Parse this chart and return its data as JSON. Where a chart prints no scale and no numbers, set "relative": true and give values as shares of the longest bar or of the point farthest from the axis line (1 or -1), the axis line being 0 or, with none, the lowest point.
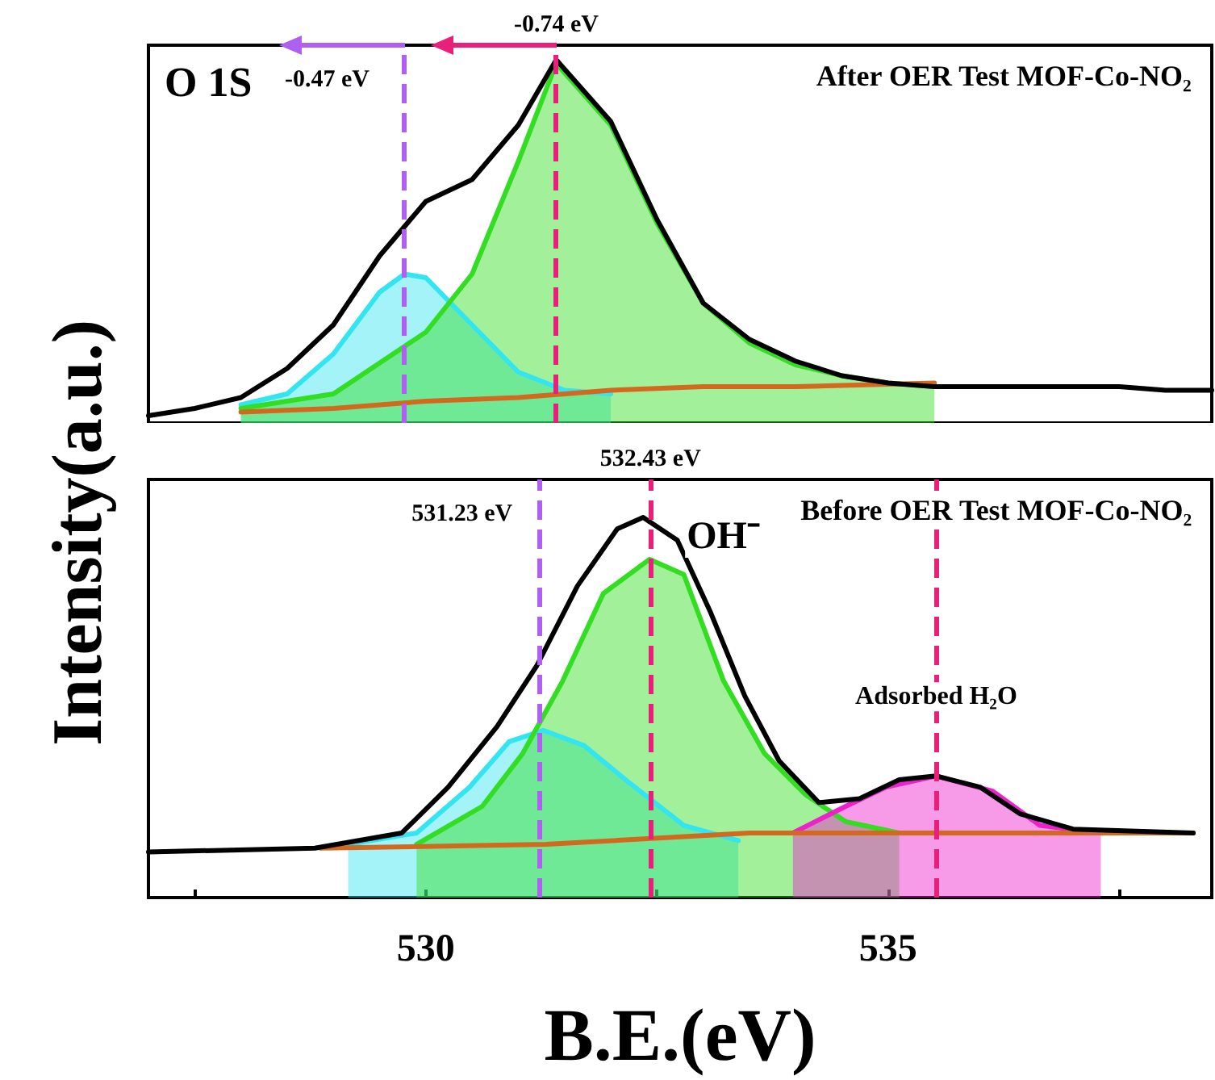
{
  "chart_data": [
    {
      "type": "line",
      "relative": true,
      "ylabel": "Intensity(a.u.)",
      "xlim": [
        527,
        538.5
      ],
      "tick_labels": false,
      "grid": false,
      "marker": "none",
      "annotations": [
        "O 1S",
        "After OER Test MOF-Co-NO₂"
      ],
      "ref_lines": [
        {
          "axis": "x",
          "value": 529.77,
          "label": "-0.47 eV",
          "color": "#b060f0",
          "line_style": "dashed"
        },
        {
          "axis": "x",
          "value": 531.41,
          "label": "-0.74 eV",
          "color": "#e8207a",
          "line_style": "dashed"
        }
      ],
      "series": [
        {
          "type": "area",
          "color": "#33e5f0",
          "x": [
            528,
            528.5,
            529,
            529.5,
            529.77,
            530,
            530.5,
            531,
            531.5,
            532
          ],
          "values": [
            0.05,
            0.08,
            0.19,
            0.36,
            0.41,
            0.4,
            0.27,
            0.14,
            0.09,
            0.08
          ]
        },
        {
          "type": "area",
          "color": "#33dd22",
          "x": [
            528,
            529,
            530,
            530.5,
            531,
            531.41,
            532,
            532.5,
            533,
            533.5,
            534,
            534.5,
            535,
            535.5
          ],
          "values": [
            0.04,
            0.08,
            0.25,
            0.41,
            0.72,
            0.99,
            0.82,
            0.55,
            0.33,
            0.22,
            0.16,
            0.13,
            0.11,
            0.1
          ]
        },
        {
          "type": "line",
          "color": "#d2691e",
          "x": [
            528,
            529,
            530,
            531,
            532,
            533,
            534,
            535.5
          ],
          "values": [
            0.03,
            0.04,
            0.06,
            0.07,
            0.09,
            0.1,
            0.1,
            0.11
          ]
        },
        {
          "type": "line",
          "color": "#000000",
          "x": [
            527,
            527.5,
            528,
            528.5,
            529,
            529.5,
            530,
            530.5,
            531,
            531.41,
            532,
            532.5,
            533,
            533.5,
            534,
            534.5,
            535,
            535.5,
            536,
            536.5,
            537,
            537.5,
            538,
            538.5
          ],
          "values": [
            0.02,
            0.04,
            0.07,
            0.15,
            0.27,
            0.46,
            0.61,
            0.67,
            0.82,
            1.0,
            0.83,
            0.56,
            0.33,
            0.23,
            0.17,
            0.13,
            0.11,
            0.1,
            0.1,
            0.1,
            0.1,
            0.1,
            0.09,
            0.09
          ]
        }
      ]
    },
    {
      "type": "line",
      "relative": true,
      "xlabel": "B.E.(eV)",
      "xlim": [
        527,
        538.5
      ],
      "xticks": [
        {
          "value": 527.5,
          "label": null
        },
        530,
        {
          "value": 532.5,
          "label": null
        },
        535,
        {
          "value": 537.5,
          "label": null
        }
      ],
      "tick_labels": "x",
      "grid": false,
      "marker": "none",
      "annotations": [
        "Before OER Test MOF-Co-NO₂",
        {
          "text": "OH⁻",
          "x": 532.42,
          "y": 0.89
        },
        {
          "text": "Adsorbed H₂O",
          "x": 535.52,
          "y": 0.32
        }
      ],
      "ref_lines": [
        {
          "axis": "x",
          "value": 531.23,
          "label": "531.23 eV",
          "color": "#b060f0",
          "line_style": "dashed"
        },
        {
          "axis": "x",
          "value": 532.43,
          "label": "532.43 eV",
          "color": "#e8207a",
          "line_style": "dashed"
        },
        {
          "axis": "x",
          "value": 535.52,
          "label": null,
          "color": "#e8207a",
          "line_style": "dashed"
        }
      ],
      "series": [
        {
          "type": "area",
          "color": "#33e5f0",
          "x": [
            529.16,
            529.9,
            530.47,
            530.9,
            531.27,
            531.71,
            532.21,
            532.79,
            533.38
          ],
          "values": [
            0.14,
            0.17,
            0.29,
            0.41,
            0.44,
            0.4,
            0.3,
            0.19,
            0.15
          ]
        },
        {
          "type": "area",
          "color": "#33dd22",
          "x": [
            529.9,
            530.61,
            531.05,
            531.48,
            531.92,
            532.42,
            532.79,
            533.22,
            533.66,
            534.11,
            534.54,
            535.12
          ],
          "values": [
            0.14,
            0.24,
            0.38,
            0.57,
            0.8,
            0.89,
            0.85,
            0.57,
            0.38,
            0.27,
            0.2,
            0.17
          ]
        },
        {
          "type": "area",
          "color": "#ee22cc",
          "x": [
            533.97,
            534.54,
            534.97,
            535.52,
            536.13,
            536.64,
            537.3
          ],
          "values": [
            0.17,
            0.24,
            0.29,
            0.32,
            0.28,
            0.19,
            0.17
          ]
        },
        {
          "type": "line",
          "color": "#d2691e",
          "x": [
            528.86,
            531.3,
            533.5,
            538.3
          ],
          "values": [
            0.13,
            0.14,
            0.17,
            0.17
          ]
        },
        {
          "type": "line",
          "color": "#000000",
          "x": [
            527,
            528.8,
            529.74,
            530.24,
            530.77,
            531.2,
            531.64,
            532.07,
            532.35,
            532.72,
            533.08,
            533.45,
            533.82,
            534.25,
            534.69,
            535.12,
            535.52,
            536,
            536.43,
            537,
            538.3
          ],
          "values": [
            0.12,
            0.13,
            0.17,
            0.29,
            0.45,
            0.61,
            0.82,
            0.97,
            1.0,
            0.94,
            0.75,
            0.53,
            0.36,
            0.25,
            0.26,
            0.31,
            0.32,
            0.29,
            0.22,
            0.18,
            0.17
          ]
        }
      ]
    }
  ]
}
